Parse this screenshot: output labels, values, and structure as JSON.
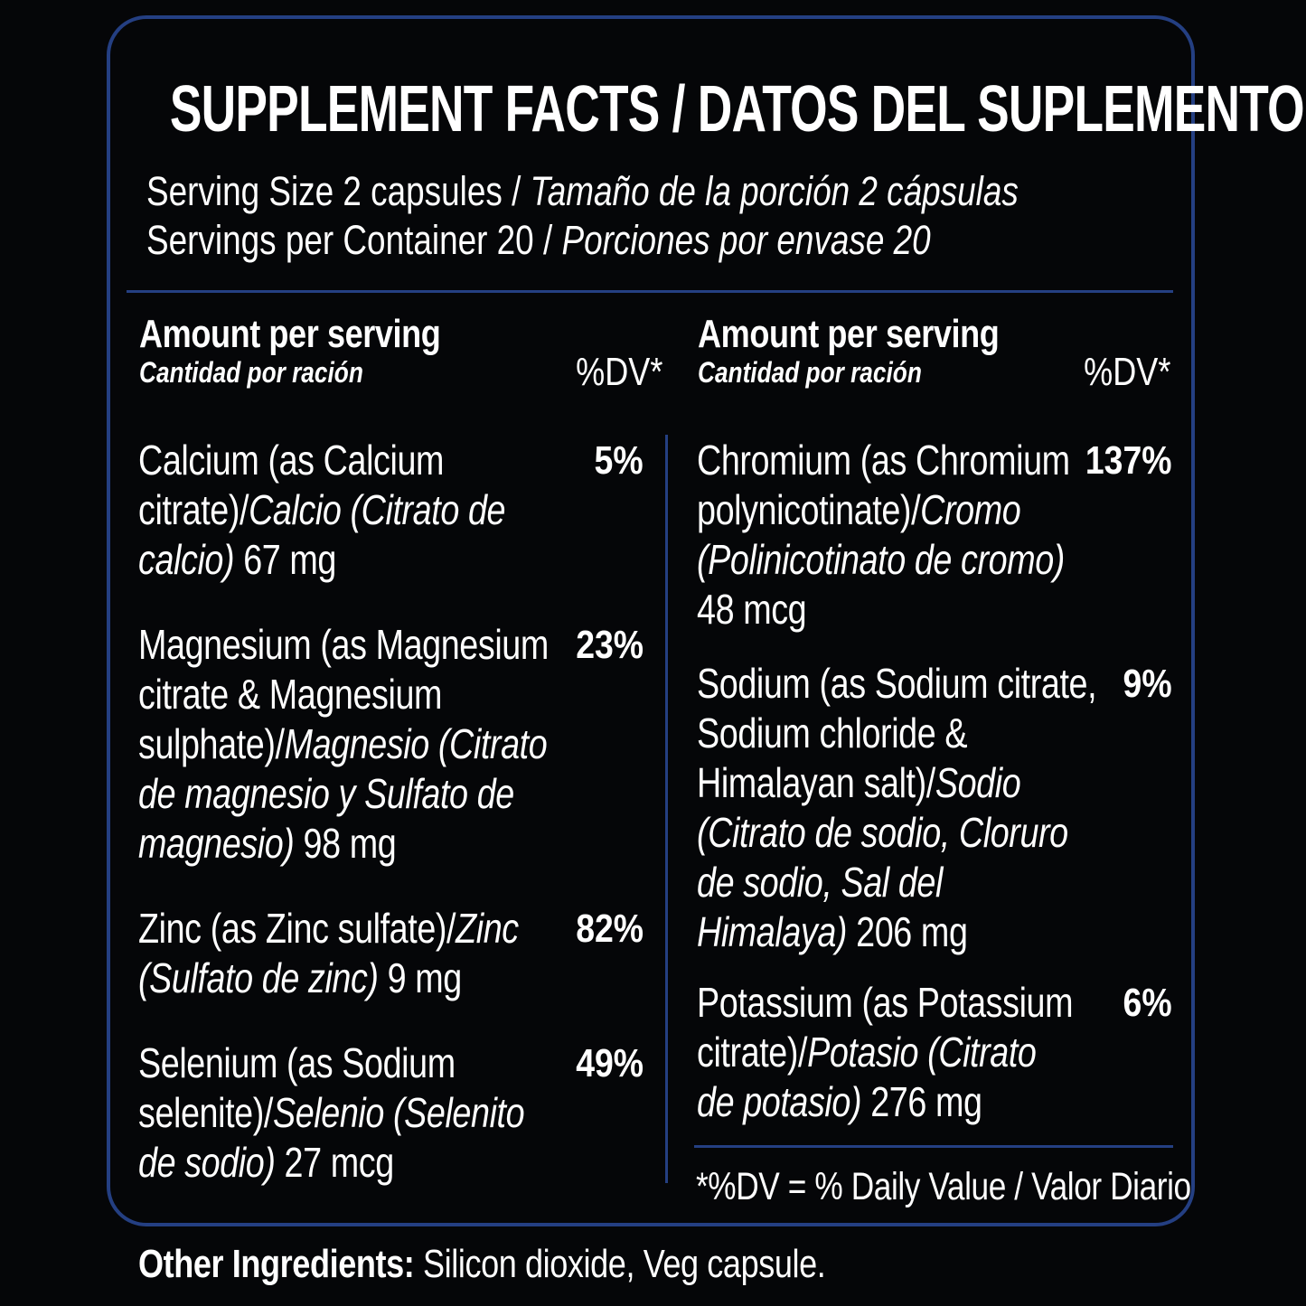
{
  "title": "SUPPLEMENT FACTS / DATOS DEL SUPLEMENTO",
  "serving": {
    "size_en": "Serving Size 2 capsules",
    "size_es": "Tamaño de la porción 2 cápsulas",
    "per_container_en": "Servings per Container 20",
    "per_container_es": "Porciones por envase 20",
    "separator": "/"
  },
  "columns": [
    {
      "header_en": "Amount per serving",
      "header_es": "Cantidad por ración",
      "dv_header": "%DV*"
    },
    {
      "header_en": "Amount per serving",
      "header_es": "Cantidad por ración",
      "dv_header": "%DV*"
    }
  ],
  "nutrients_left": [
    {
      "en": "Calcium (as Calcium citrate)/",
      "es": "Calcio (Citrato de calcio)",
      "amount": "67 mg",
      "dv": "5%"
    },
    {
      "en": "Magnesium (as Magnesium citrate & Magnesium sulphate)/",
      "es": "Magnesio (Citrato de magnesio y Sulfato de magnesio)",
      "amount": "98 mg",
      "dv": "23%"
    },
    {
      "en": "Zinc (as Zinc sulfate)/",
      "es": "Zinc (Sulfato de zinc)",
      "amount": "9 mg",
      "dv": "82%"
    },
    {
      "en": "Selenium (as Sodium selenite)/",
      "es": "Selenio (Selenito de sodio)",
      "amount": "27 mcg",
      "dv": "49%"
    }
  ],
  "nutrients_right": [
    {
      "en": "Chromium (as Chromium polynicotinate)/",
      "es": "Cromo (Polinicotinato de cromo)",
      "amount": "48 mcg",
      "dv": "137%"
    },
    {
      "en": "Sodium (as Sodium citrate, Sodium chloride & Himalayan salt)/",
      "es": "Sodio (Citrato de sodio, Cloruro de sodio, Sal del Himalaya)",
      "amount": "206 mg",
      "dv": "9%"
    },
    {
      "en": "Potassium (as Potassium citrate)/",
      "es": "Potasio (Citrato de potasio)",
      "amount": "276 mg",
      "dv": "6%"
    }
  ],
  "footnote": "*%DV = % Daily Value / Valor Diario",
  "other_ingredients": {
    "label": "Other Ingredients:",
    "value": "Silicon dioxide, Veg capsule."
  },
  "colors": {
    "background": "#050608",
    "border": "#243f82",
    "text": "#ffffff"
  }
}
